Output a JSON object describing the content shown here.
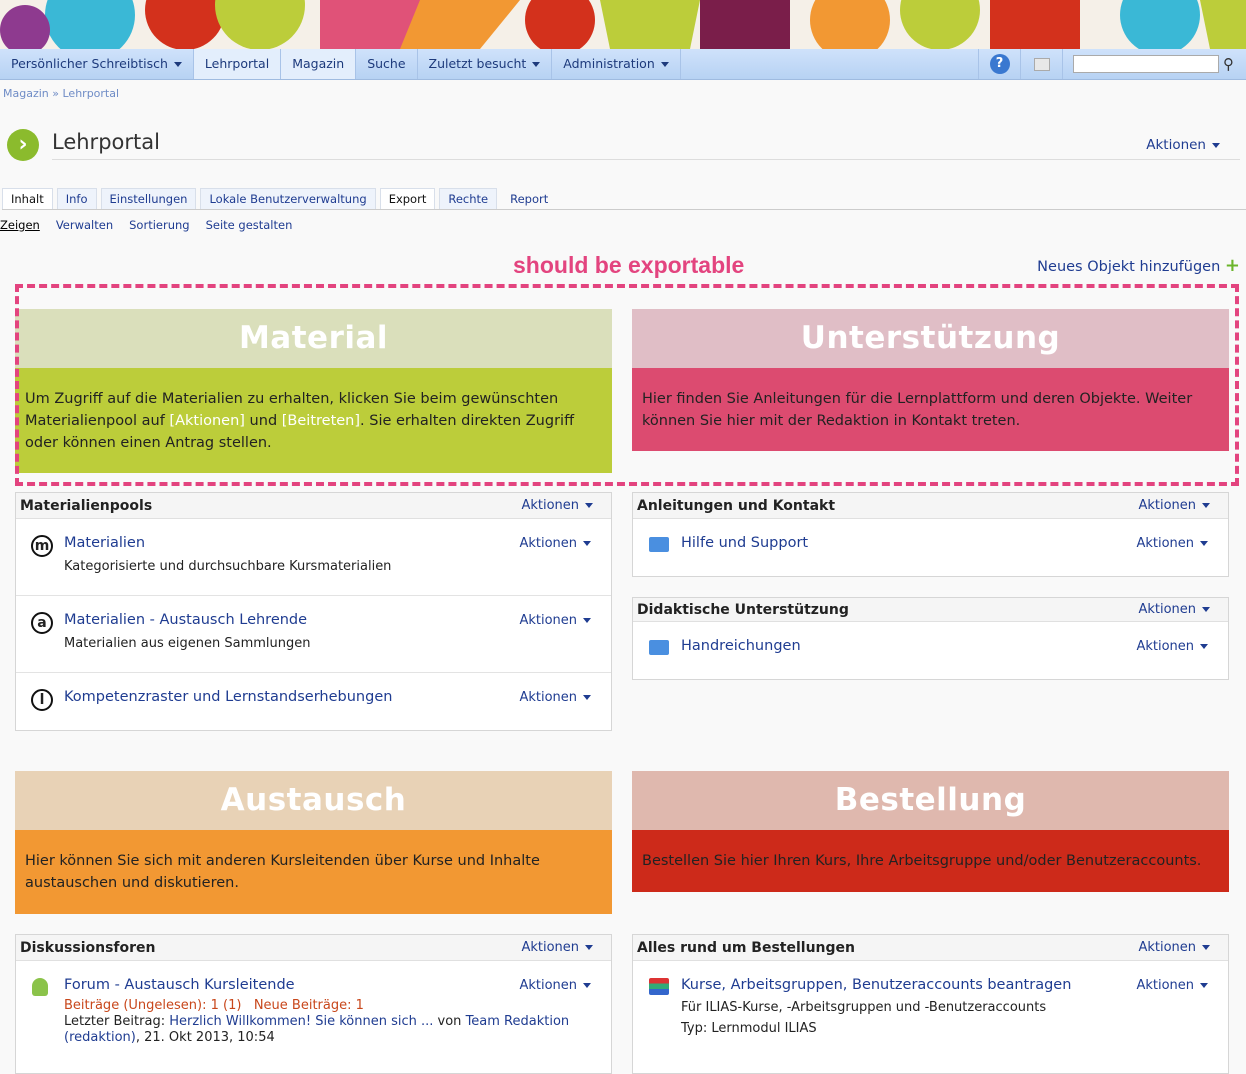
{
  "nav": {
    "items": [
      "Persönlicher Schreibtisch",
      "Lehrportal",
      "Magazin",
      "Suche",
      "Zuletzt besucht",
      "Administration"
    ],
    "search_placeholder": ""
  },
  "breadcrumb": {
    "a": "Magazin",
    "sep": "»",
    "b": "Lehrportal"
  },
  "header": {
    "title": "Lehrportal",
    "actions": "Aktionen"
  },
  "tabs": [
    "Inhalt",
    "Info",
    "Einstellungen",
    "Lokale Benutzerverwaltung",
    "Export",
    "Rechte",
    "Report"
  ],
  "subtabs": [
    "Zeigen",
    "Verwalten",
    "Sortierung",
    "Seite gestalten"
  ],
  "annotation": "should be exportable",
  "add_object": "Neues Objekt hinzufügen",
  "tiles": {
    "material": {
      "title": "Material",
      "t1": "Um Zugriff auf die Materialien zu erhalten, klicken Sie beim gewünschten Materialienpool auf ",
      "h1": "[Aktionen]",
      "t2": " und ",
      "h2": "[Beitreten]",
      "t3": ". Sie erhalten direkten Zugriff oder können einen Antrag stellen."
    },
    "support": {
      "title": "Unterstützung",
      "text": "Hier finden Sie Anleitungen für die Lernplattform und deren Objekte. Weiter können Sie hier mit der Redaktion in Kontakt treten."
    },
    "austausch": {
      "title": "Austausch",
      "text": "Hier können Sie sich mit anderen Kursleitenden über Kurse und Inhalte austauschen und diskutieren."
    },
    "bestellung": {
      "title": "Bestellung",
      "text": "Bestellen Sie hier Ihren Kurs, Ihre Arbeitsgruppe und/oder Benutzeraccounts."
    }
  },
  "colors": {
    "material_head": "#dadfbb",
    "material_body": "#bccd3a",
    "support_head": "#e0bec6",
    "support_body": "#dc4b70",
    "austausch_head": "#e8d2b6",
    "austausch_body": "#f29833",
    "bestellung_head": "#dfb8ae",
    "bestellung_body": "#cd2a1a",
    "annotation": "#e3447f"
  },
  "actions": "Aktionen",
  "pools": {
    "title": "Materialienpools",
    "items": [
      {
        "icon": "m",
        "title": "Materialien",
        "desc": "Kategorisierte und durchsuchbare Kursmaterialien"
      },
      {
        "icon": "a",
        "title": "Materialien - Austausch Lehrende",
        "desc": "Materialien aus eigenen Sammlungen"
      },
      {
        "icon": "l",
        "title": "Kompetenzraster und Lernstandserhebungen"
      }
    ]
  },
  "anleitungen": {
    "title": "Anleitungen und Kontakt",
    "items": [
      {
        "title": "Hilfe und Support"
      }
    ]
  },
  "didaktik": {
    "title": "Didaktische Unterstützung",
    "items": [
      {
        "title": "Handreichungen"
      }
    ]
  },
  "foren": {
    "title": "Diskussionsforen",
    "item": {
      "title": "Forum - Austausch Kursleitende",
      "stats": "Beiträge (Ungelesen): 1 (1)",
      "new": "Neue Beiträge: 1",
      "last_label": "Letzter Beitrag: ",
      "last_link": "Herzlich Willkommen! Sie können sich ...",
      "by": " von ",
      "author": "Team Redaktion (redaktion)",
      "date": ", 21. Okt 2013, 10:54"
    }
  },
  "bestell": {
    "title": "Alles rund um Bestellungen",
    "item": {
      "title": "Kurse, Arbeitsgruppen, Benutzeraccounts beantragen",
      "desc": "Für ILIAS-Kurse, -Arbeitsgruppen und -Benutzeraccounts",
      "type": "Typ: Lernmodul ILIAS"
    }
  }
}
